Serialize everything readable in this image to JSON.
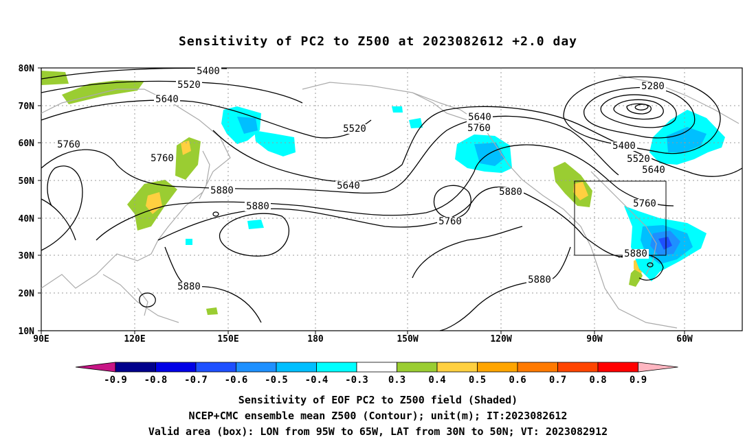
{
  "title": "Sensitivity of PC2 to Z500 at 2023082612 +2.0 day",
  "map": {
    "lat_labels": [
      "80N",
      "70N",
      "60N",
      "50N",
      "40N",
      "30N",
      "20N",
      "10N"
    ],
    "lon_labels": [
      "90E",
      "120E",
      "150E",
      "180",
      "150W",
      "120W",
      "90W",
      "60W"
    ],
    "contour_labels": [
      "5400",
      "5520",
      "5640",
      "5760",
      "5520",
      "5640",
      "5760",
      "5880",
      "5640",
      "5760",
      "5880",
      "5280",
      "5400",
      "5520",
      "5640",
      "5760",
      "5880",
      "5880",
      "5880",
      "5760",
      "5880"
    ],
    "valid_box": {
      "lon_from": "95W",
      "lon_to": "65W",
      "lat_from": "30N",
      "lat_to": "50N"
    }
  },
  "colorbar": {
    "labels": [
      "-0.9",
      "-0.8",
      "-0.7",
      "-0.6",
      "-0.5",
      "-0.4",
      "-0.3",
      "0.3",
      "0.4",
      "0.5",
      "0.6",
      "0.7",
      "0.8",
      "0.9"
    ],
    "colors": [
      "#00008b",
      "#0000e6",
      "#1e50ff",
      "#1e90ff",
      "#00bfff",
      "#00ffff",
      "#ffffff",
      "#9acd32",
      "#ffd040",
      "#ffa500",
      "#ff7a00",
      "#ff4500",
      "#ff0000"
    ],
    "left_tip": "#c71585",
    "right_tip": "#ffb6c1"
  },
  "captions": [
    "Sensitivity of EOF PC2 to Z500 field (Shaded)",
    "NCEP+CMC ensemble mean Z500 (Contour); unit(m); IT:2023082612",
    "Valid area (box): LON from 95W to 65W, LAT from 30N to 50N; VT: 2023082912"
  ]
}
